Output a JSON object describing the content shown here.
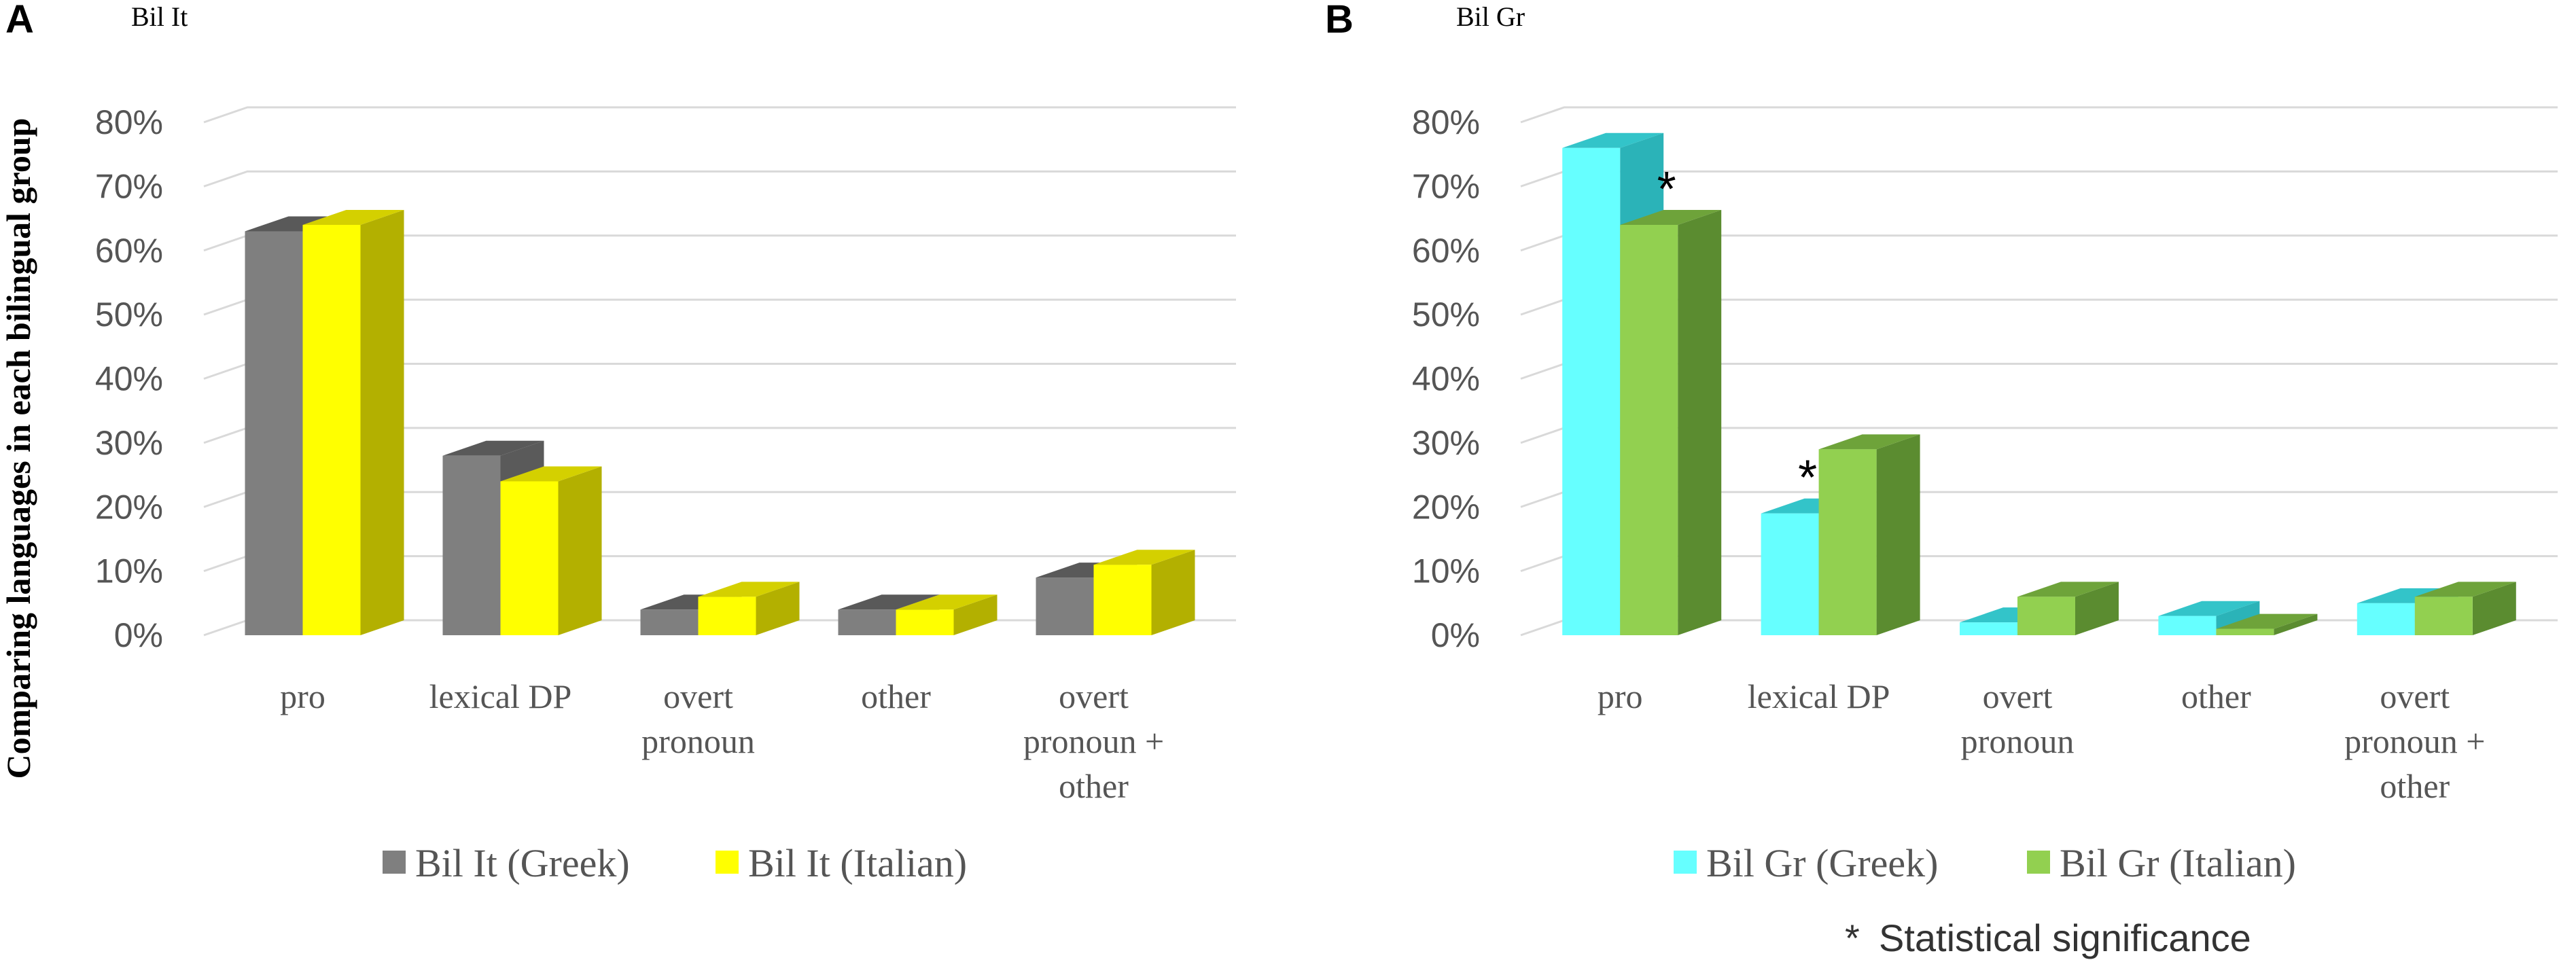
{
  "y_axis_label": "Comparing languages in each bilingual group",
  "note": {
    "star": "*",
    "text": "Statistical significance"
  },
  "chart_data": [
    {
      "type": "bar",
      "panel": "A",
      "title": "Bil It",
      "categories": [
        "pro",
        "lexical DP",
        "overt pronoun",
        "other",
        "overt pronoun + other"
      ],
      "category_lines": [
        [
          "pro"
        ],
        [
          "lexical DP"
        ],
        [
          "overt",
          "pronoun"
        ],
        [
          "other"
        ],
        [
          "overt",
          "pronoun +",
          "other"
        ]
      ],
      "series": [
        {
          "name": "Bil It (Greek)",
          "values": [
            0.63,
            0.28,
            0.04,
            0.04,
            0.09
          ],
          "color": "#7f7f7f",
          "top_color": "#595959",
          "side_color": "#5a5a5a"
        },
        {
          "name": "Bil It (Italian)",
          "values": [
            0.64,
            0.24,
            0.06,
            0.04,
            0.11
          ],
          "color": "#ffff00",
          "top_color": "#d4d000",
          "side_color": "#b3b000"
        }
      ],
      "significant": [],
      "ylim": [
        0,
        0.8
      ],
      "yticks": [
        "0%",
        "10%",
        "20%",
        "30%",
        "40%",
        "50%",
        "60%",
        "70%",
        "80%"
      ],
      "grid": true,
      "legend_position": "bottom"
    },
    {
      "type": "bar",
      "panel": "B",
      "title": "Bil Gr",
      "categories": [
        "pro",
        "lexical DP",
        "overt pronoun",
        "other",
        "overt pronoun + other"
      ],
      "category_lines": [
        [
          "pro"
        ],
        [
          "lexical DP"
        ],
        [
          "overt",
          "pronoun"
        ],
        [
          "other"
        ],
        [
          "overt",
          "pronoun +",
          "other"
        ]
      ],
      "series": [
        {
          "name": "Bil Gr (Greek)",
          "values": [
            0.76,
            0.19,
            0.02,
            0.03,
            0.05
          ],
          "color": "#66ffff",
          "top_color": "#33c4c9",
          "side_color": "#2bb3b8"
        },
        {
          "name": "Bil Gr (Italian)",
          "values": [
            0.64,
            0.29,
            0.06,
            0.01,
            0.06
          ],
          "color": "#92d050",
          "top_color": "#6ea33a",
          "side_color": "#5b8c30"
        }
      ],
      "significant": [
        {
          "category": 0,
          "series": 1
        },
        {
          "category": 1,
          "series": 0
        }
      ],
      "ylim": [
        0,
        0.8
      ],
      "yticks": [
        "0%",
        "10%",
        "20%",
        "30%",
        "40%",
        "50%",
        "60%",
        "70%",
        "80%"
      ],
      "grid": true,
      "legend_position": "bottom"
    }
  ]
}
